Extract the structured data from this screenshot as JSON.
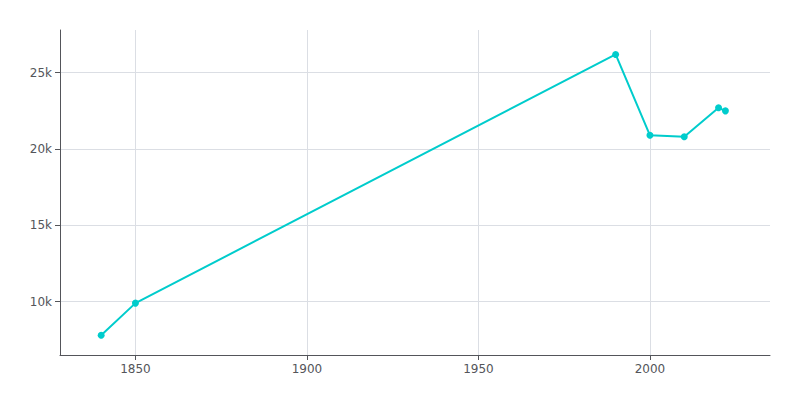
{
  "chart_data": {
    "type": "line",
    "x": [
      1840,
      1850,
      1990,
      2000,
      2010,
      2020,
      2022
    ],
    "values": [
      7800,
      9900,
      26200,
      20900,
      20800,
      22700,
      22500
    ],
    "color": "#00CCCC",
    "marker": "circle",
    "xlim": [
      1828,
      2035
    ],
    "ylim": [
      6500,
      27800
    ],
    "xticks": [
      1850,
      1900,
      1950,
      2000
    ],
    "yticks": [
      {
        "value": 10000,
        "label": "10k"
      },
      {
        "value": 15000,
        "label": "15k"
      },
      {
        "value": 20000,
        "label": "20k"
      },
      {
        "value": 25000,
        "label": "25k"
      }
    ],
    "grid": true
  }
}
